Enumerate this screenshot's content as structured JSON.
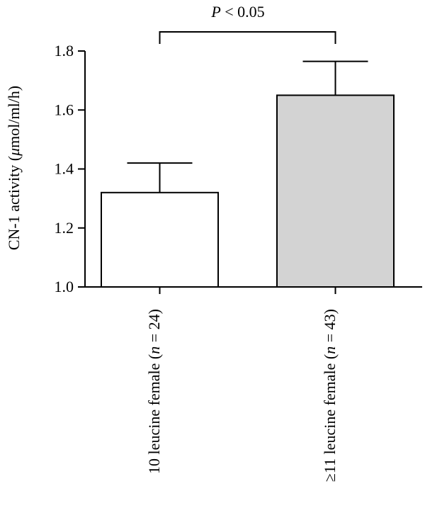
{
  "chart_data": {
    "type": "bar",
    "title": "",
    "xlabel": "",
    "ylabel": {
      "prefix": "CN-1 activity (",
      "mu": "μ",
      "suffix": "mol/ml/h)"
    },
    "ylim": [
      1.0,
      1.8
    ],
    "yticks": [
      1.0,
      1.2,
      1.4,
      1.6,
      1.8
    ],
    "ytick_labels": [
      "1.0",
      "1.2",
      "1.4",
      "1.6",
      "1.8"
    ],
    "grid": false,
    "categories": [
      {
        "prefix": "10 leucine female (",
        "n_symbol": "n",
        "suffix": " = 24)"
      },
      {
        "prefix": "≥11 leucine female (",
        "n_symbol": "n",
        "suffix": " = 43)"
      }
    ],
    "values": [
      1.32,
      1.65
    ],
    "error_upper": [
      1.42,
      1.765
    ],
    "colors": {
      "bar_fills": [
        "#ffffff",
        "#d3d3d3"
      ],
      "stroke": "#000000"
    },
    "annotation": {
      "italic": "P",
      "text": " < 0.05"
    }
  }
}
